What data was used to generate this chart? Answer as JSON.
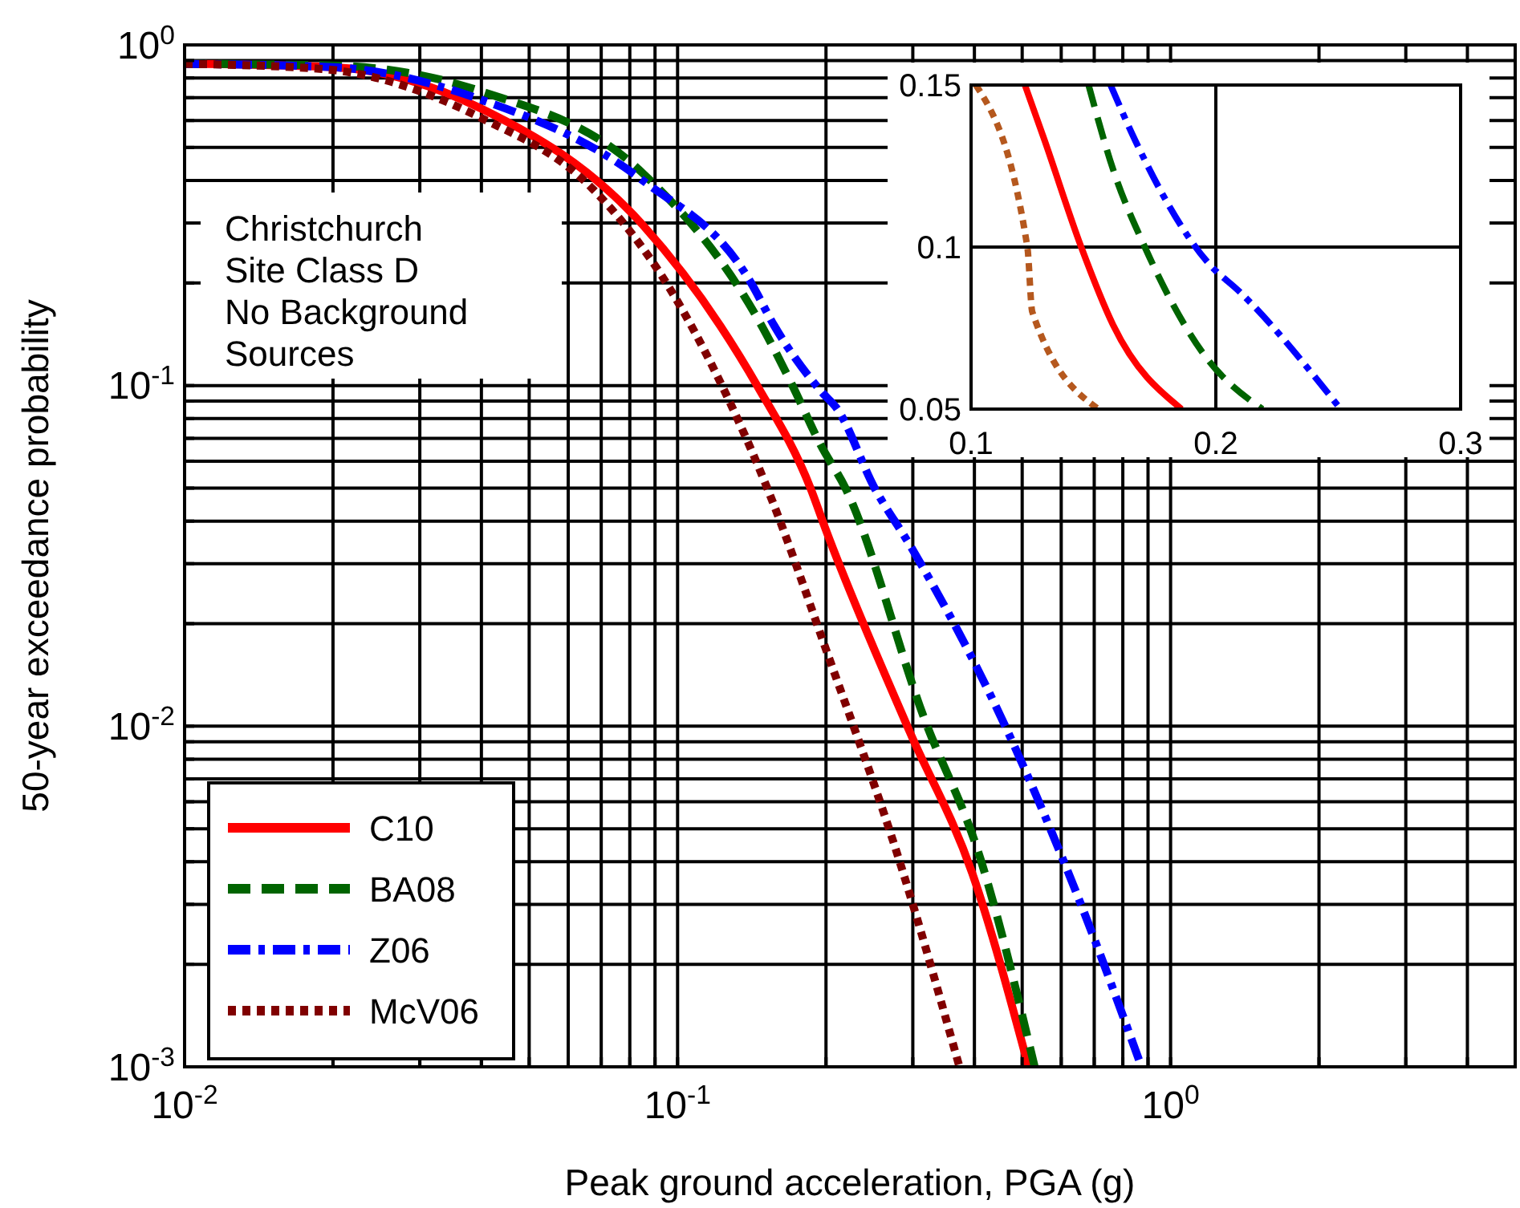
{
  "chart_data": [
    {
      "type": "line",
      "xlabel": "Peak ground acceleration, PGA (g)",
      "ylabel": "50-year exceedance probability",
      "log": "xy",
      "grid": true,
      "legend": "bottom left",
      "xlim": [
        0.01,
        5
      ],
      "ylim": [
        0.001,
        1
      ],
      "xticks": [
        {
          "value": 0.01,
          "label": "10$^{-2}$"
        },
        {
          "value": 0.02,
          "label": null
        },
        {
          "value": 0.03,
          "label": null
        },
        {
          "value": 0.04,
          "label": null
        },
        {
          "value": 0.05,
          "label": null
        },
        {
          "value": 0.06,
          "label": null
        },
        {
          "value": 0.07,
          "label": null
        },
        {
          "value": 0.08,
          "label": null
        },
        {
          "value": 0.09,
          "label": null
        },
        {
          "value": 0.1,
          "label": "10$^{-1}$"
        },
        {
          "value": 0.2,
          "label": null
        },
        {
          "value": 0.3,
          "label": null
        },
        {
          "value": 0.4,
          "label": null
        },
        {
          "value": 0.5,
          "label": null
        },
        {
          "value": 0.6,
          "label": null
        },
        {
          "value": 0.7,
          "label": null
        },
        {
          "value": 0.8,
          "label": null
        },
        {
          "value": 0.9,
          "label": null
        },
        {
          "value": 1,
          "label": "10$^{0}$"
        },
        {
          "value": 2,
          "label": null
        },
        {
          "value": 3,
          "label": null
        },
        {
          "value": 4,
          "label": null
        },
        {
          "value": 5,
          "label": null
        }
      ],
      "yticks": [
        {
          "value": 0.001,
          "label": "10$^{-3}$"
        },
        {
          "value": 0.002,
          "label": null
        },
        {
          "value": 0.003,
          "label": null
        },
        {
          "value": 0.004,
          "label": null
        },
        {
          "value": 0.005,
          "label": null
        },
        {
          "value": 0.006,
          "label": null
        },
        {
          "value": 0.007,
          "label": null
        },
        {
          "value": 0.008,
          "label": null
        },
        {
          "value": 0.009,
          "label": null
        },
        {
          "value": 0.01,
          "label": "10$^{-2}$"
        },
        {
          "value": 0.02,
          "label": null
        },
        {
          "value": 0.03,
          "label": null
        },
        {
          "value": 0.04,
          "label": null
        },
        {
          "value": 0.05,
          "label": null
        },
        {
          "value": 0.06,
          "label": null
        },
        {
          "value": 0.07,
          "label": null
        },
        {
          "value": 0.08,
          "label": null
        },
        {
          "value": 0.09,
          "label": null
        },
        {
          "value": 0.1,
          "label": "10$^{-1}$"
        },
        {
          "value": 0.2,
          "label": null
        },
        {
          "value": 0.3,
          "label": null
        },
        {
          "value": 0.4,
          "label": null
        },
        {
          "value": 0.5,
          "label": null
        },
        {
          "value": 0.6,
          "label": null
        },
        {
          "value": 0.7,
          "label": null
        },
        {
          "value": 0.8,
          "label": null
        },
        {
          "value": 0.9,
          "label": null
        },
        {
          "value": 1,
          "label": "10$^{0}$"
        }
      ],
      "annotations": [
        "Christchurch\nSite Class D\nNo Background\nSources"
      ],
      "series": [
        {
          "name": "C10",
          "color": "#ff0000",
          "line_style": "solid",
          "x": [
            0.01,
            0.02,
            0.04,
            0.085,
            0.122,
            0.145,
            0.186,
            0.2,
            0.296,
            0.396,
            0.515
          ],
          "values": [
            0.88,
            0.86,
            0.65,
            0.296,
            0.15,
            0.1,
            0.05,
            0.0376,
            0.0096,
            0.0037,
            0.001
          ]
        },
        {
          "name": "BA08",
          "color": "#006400",
          "line_style": "dashed",
          "x": [
            0.01,
            0.02,
            0.04,
            0.085,
            0.148,
            0.171,
            0.195,
            0.219,
            0.316,
            0.411,
            0.53
          ],
          "values": [
            0.88,
            0.87,
            0.73,
            0.42,
            0.15,
            0.1,
            0.067,
            0.05,
            0.0106,
            0.0041,
            0.001
          ]
        },
        {
          "name": "Z06",
          "color": "#0000ff",
          "line_style": "dashdot",
          "x": [
            0.01,
            0.02,
            0.04,
            0.085,
            0.141,
            0.157,
            0.197,
            0.21,
            0.251,
            0.296,
            0.468,
            0.652,
            0.873
          ],
          "values": [
            0.88,
            0.86,
            0.69,
            0.4,
            0.2,
            0.15,
            0.095,
            0.086,
            0.05,
            0.034,
            0.0096,
            0.0031,
            0.001
          ]
        },
        {
          "name": "McV06",
          "color": "#800000",
          "line_style": "dotted",
          "x": [
            0.01,
            0.019,
            0.04,
            0.067,
            0.097,
            0.123,
            0.152,
            0.2,
            0.287,
            0.373
          ],
          "values": [
            0.88,
            0.85,
            0.61,
            0.38,
            0.19,
            0.1,
            0.05,
            0.0168,
            0.0037,
            0.001
          ]
        }
      ]
    },
    {
      "type": "line",
      "grid": true,
      "xlim": [
        0.1,
        0.3
      ],
      "ylim": [
        0.05,
        0.15
      ],
      "xticks": [
        0.1,
        0.2,
        0.3
      ],
      "yticks": [
        0.05,
        0.1,
        0.15
      ],
      "series": [
        {
          "color": "#ff0000",
          "line_style": "solid",
          "x": [
            0.122,
            0.13,
            0.145,
            0.158,
            0.186
          ],
          "values": [
            0.15,
            0.133,
            0.1,
            0.076,
            0.05
          ]
        },
        {
          "color": "#006400",
          "line_style": "dashed",
          "x": [
            0.148,
            0.158,
            0.171,
            0.195,
            0.219
          ],
          "values": [
            0.15,
            0.124,
            0.1,
            0.067,
            0.05
          ]
        },
        {
          "color": "#0000ff",
          "line_style": "dashdot",
          "x": [
            0.157,
            0.167,
            0.197,
            0.21,
            0.251
          ],
          "values": [
            0.15,
            0.133,
            0.095,
            0.086,
            0.05
          ]
        },
        {
          "color": "#b5581e",
          "line_style": "dotted",
          "x": [
            0.102,
            0.123,
            0.125,
            0.152
          ],
          "values": [
            0.15,
            0.1,
            0.08,
            0.05
          ]
        }
      ]
    }
  ]
}
